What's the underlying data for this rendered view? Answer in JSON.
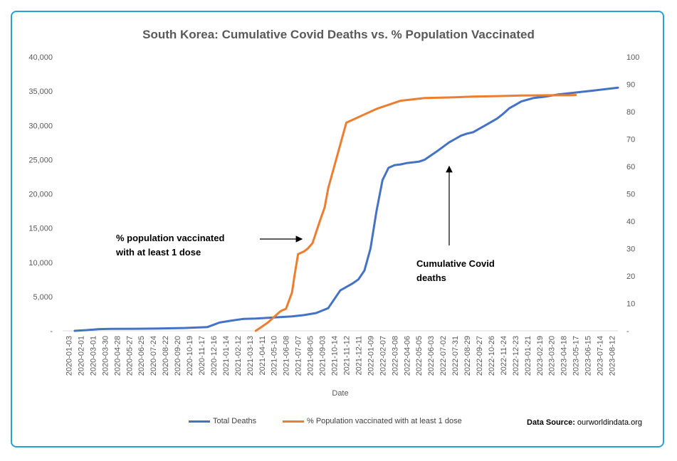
{
  "chart_data": {
    "type": "line",
    "title": "South Korea: Cumulative Covid Deaths vs. % Population Vaccinated",
    "xlabel": "Date",
    "ylabel_left": "",
    "ylabel_right": "",
    "ylim_left": [
      0,
      40000
    ],
    "ylim_right": [
      0,
      100
    ],
    "left_ticks": [
      "-",
      "5,000",
      "10,000",
      "15,000",
      "20,000",
      "25,000",
      "30,000",
      "35,000",
      "40,000"
    ],
    "right_ticks": [
      "-",
      "10",
      "20",
      "30",
      "40",
      "50",
      "60",
      "70",
      "80",
      "90",
      "100"
    ],
    "categories": [
      "2020-01-03",
      "2020-02-01",
      "2020-03-01",
      "2020-03-30",
      "2020-04-28",
      "2020-05-27",
      "2020-06-25",
      "2020-07-24",
      "2020-08-22",
      "2020-09-20",
      "2020-10-19",
      "2020-11-17",
      "2020-12-16",
      "2021-01-14",
      "2021-02-12",
      "2021-03-13",
      "2021-04-11",
      "2021-05-10",
      "2021-06-08",
      "2021-07-07",
      "2021-08-05",
      "2021-09-03",
      "2021-10-14",
      "2021-11-12",
      "2021-12-11",
      "2022-01-09",
      "2022-02-07",
      "2022-03-08",
      "2022-04-06",
      "2022-05-05",
      "2022-06-03",
      "2022-07-02",
      "2022-07-31",
      "2022-08-29",
      "2022-09-27",
      "2022-10-26",
      "2022-11-24",
      "2022-12-23",
      "2023-01-21",
      "2023-02-19",
      "2023-03-20",
      "2023-04-18",
      "2023-05-17",
      "2023-06-15",
      "2023-07-14",
      "2023-08-12"
    ],
    "series": [
      {
        "name": "Total Deaths",
        "axis": "left",
        "color": "#4472c4",
        "x": [
          1,
          2,
          3,
          4,
          6,
          8,
          10,
          12,
          13,
          14,
          15,
          16,
          17,
          18,
          19,
          20,
          21,
          22,
          23,
          24,
          24.5,
          25,
          25.5,
          26,
          26.5,
          27,
          27.5,
          28,
          28.5,
          29,
          29.5,
          30,
          31,
          32,
          32.5,
          33,
          33.5,
          34,
          34.5,
          35,
          36,
          36.5,
          37,
          37.5,
          38,
          39,
          40,
          41,
          42,
          43,
          44,
          45,
          46
        ],
        "values": [
          0,
          100,
          250,
          280,
          300,
          330,
          400,
          550,
          1200,
          1500,
          1750,
          1800,
          1900,
          2000,
          2100,
          2300,
          2600,
          3300,
          5900,
          6900,
          7500,
          8800,
          12000,
          17500,
          22000,
          23800,
          24200,
          24300,
          24500,
          24600,
          24700,
          25000,
          26200,
          27500,
          28000,
          28500,
          28800,
          29000,
          29500,
          30000,
          31000,
          31700,
          32500,
          33000,
          33500,
          34000,
          34200,
          34500,
          34700,
          34900,
          35100,
          35300,
          35500
        ]
      },
      {
        "name": "% Population vaccinated with at least 1 dose",
        "axis": "right",
        "color": "#ed7d31",
        "x": [
          16,
          16.5,
          17,
          17.5,
          18,
          18.2,
          18.5,
          19,
          19.2,
          19.5,
          20,
          20.3,
          20.7,
          21,
          21.3,
          21.7,
          22,
          22.5,
          23,
          23.5,
          24,
          25,
          26,
          28,
          30,
          32,
          34,
          36,
          38,
          40,
          42,
          42.5
        ],
        "values": [
          0,
          1.5,
          3,
          5,
          7,
          7.5,
          8,
          14,
          20,
          28,
          29,
          30,
          32,
          36,
          40,
          45,
          52,
          60,
          68,
          76,
          77,
          79,
          81,
          84,
          85,
          85.2,
          85.5,
          85.7,
          85.9,
          86,
          86,
          86.1
        ]
      }
    ],
    "annotations": [
      {
        "line1": "% population vaccinated",
        "line2": "with at least 1 dose"
      },
      {
        "line1": "Cumulative Covid",
        "line2": "deaths"
      }
    ],
    "legend": [
      "Total Deaths",
      "% Population vaccinated with at least 1 dose"
    ],
    "source_label": "Data Source:",
    "source_value": "ourworldindata.org"
  }
}
